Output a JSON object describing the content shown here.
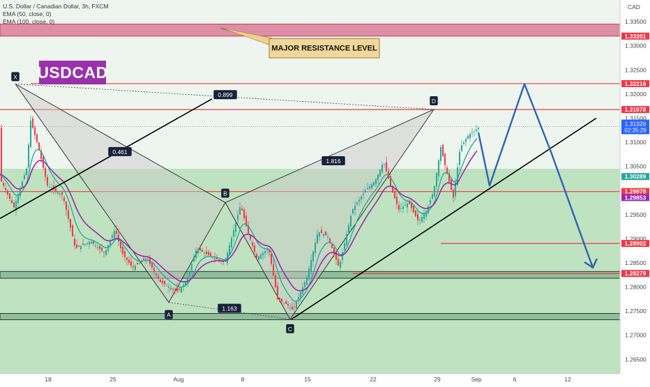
{
  "header": {
    "title": "U.S. Dollar / Canadian Dollar, 3h, FXCM",
    "ema1": "EMA (50, close, 0)",
    "ema2": "EMA (100, close, 0)",
    "currency": "CAD"
  },
  "symbol_label": "USDCAD",
  "chart_data": {
    "type": "line",
    "y_range": [
      1.262,
      1.3395
    ],
    "y_ticks": [
      "1.33500",
      "1.33000",
      "1.32500",
      "1.32000",
      "1.31500",
      "1.31000",
      "1.30500",
      "1.30000",
      "1.29500",
      "1.29000",
      "1.28500",
      "1.28000",
      "1.27500",
      "1.27000",
      "1.26500"
    ],
    "x_ticks": [
      "18",
      "25",
      "Aug",
      "8",
      "15",
      "22",
      "29",
      "Sep",
      "6",
      "12"
    ],
    "price_labels": [
      {
        "text": "1.33201",
        "value": 1.33201,
        "color": "#f23645"
      },
      {
        "text": "1.32216",
        "value": 1.32216,
        "color": "#f23645"
      },
      {
        "text": "1.31678",
        "value": 1.31678,
        "color": "#f23645"
      },
      {
        "text": "1.29978",
        "value": 1.29978,
        "color": "#f23645"
      },
      {
        "text": "1.28902",
        "value": 1.28902,
        "color": "#f23645"
      },
      {
        "text": "1.28279",
        "value": 1.28279,
        "color": "#f23645"
      },
      {
        "text": "1.30289",
        "value": 1.30289,
        "color": "#26a69a"
      },
      {
        "text": "1.29853",
        "value": 1.29853,
        "color": "#9c27b0"
      }
    ],
    "current_price": {
      "text": "1.31326",
      "countdown": "02:35:29",
      "value": 1.31326,
      "color": "#2962ff"
    },
    "resistance_zone": [
      1.33201,
      1.3345
    ],
    "resistance_label": "MAJOR RESISTANCE LEVEL",
    "support_zones": [
      [
        1.2818,
        1.2832
      ],
      [
        1.2732,
        1.2745
      ]
    ],
    "horizontal_levels": [
      1.32216,
      1.31678,
      1.29978,
      1.28902,
      1.28279
    ],
    "pattern_points": [
      {
        "label": "X",
        "value": 1.3221
      },
      {
        "label": "A",
        "value": 1.2768
      },
      {
        "label": "B",
        "value": 1.2975
      },
      {
        "label": "C",
        "value": 1.2733
      },
      {
        "label": "D",
        "value": 1.3168
      }
    ],
    "ratios": [
      "0.899",
      "0.461",
      "1.816",
      "1.163"
    ],
    "colors": {
      "up": "#26a69a",
      "down": "#f23645",
      "ema50": "#26a69a",
      "ema100": "#9c27b0",
      "trend": "#000000",
      "projection": "#2e63b5",
      "pattern_fill": "#c8c8c8"
    }
  }
}
